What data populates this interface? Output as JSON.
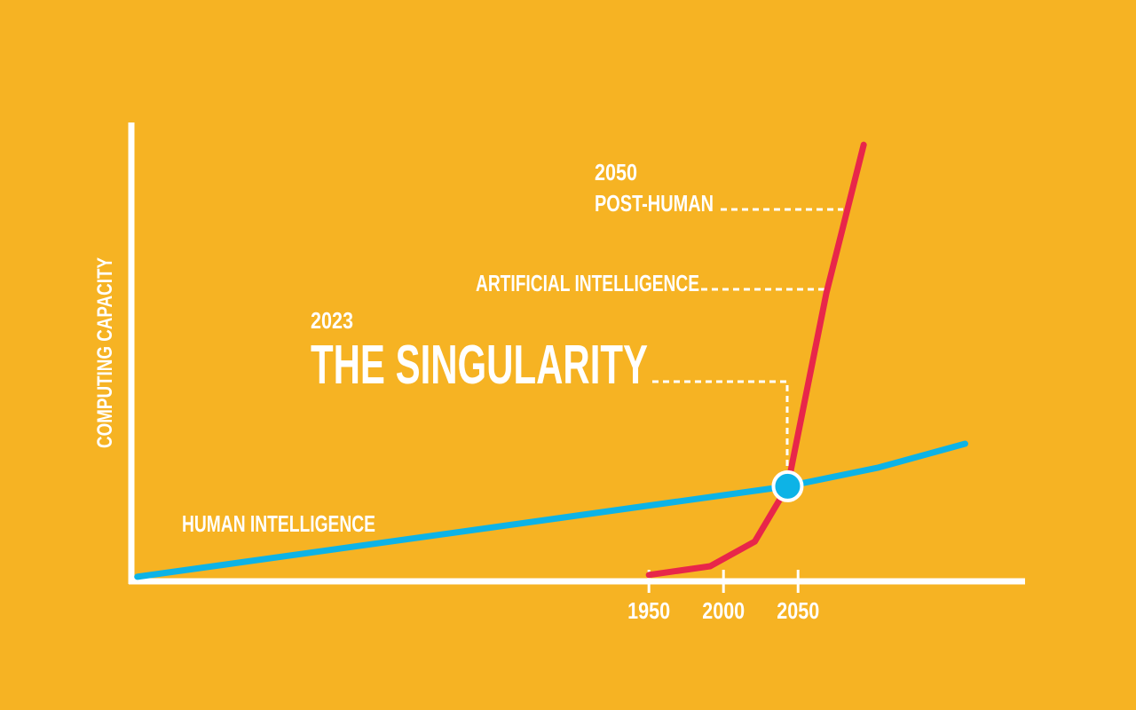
{
  "chart_data": {
    "type": "line",
    "y_label": "COMPUTING CAPACITY",
    "xlim": [
      1603,
      2201
    ],
    "ylim": [
      0,
      100
    ],
    "xticks": [
      1950,
      2000,
      2050
    ],
    "series": [
      {
        "name": "HUMAN INTELLIGENCE",
        "color": "#0db3e6",
        "x": [
          1607,
          1812,
          2043,
          2104,
          2162
        ],
        "values": [
          1,
          10.3,
          20.8,
          24.9,
          30.1
        ]
      },
      {
        "name": "ARTIFICIAL INTELLIGENCE",
        "color": "#e8264a",
        "x": [
          1950,
          1991,
          2021,
          2043,
          2069,
          2094
        ],
        "values": [
          1.4,
          3.3,
          8.7,
          20.8,
          63.1,
          95.5
        ]
      }
    ],
    "annotations": [
      "2050",
      "POST-HUMAN",
      "2023",
      "THE SINGULARITY"
    ]
  }
}
